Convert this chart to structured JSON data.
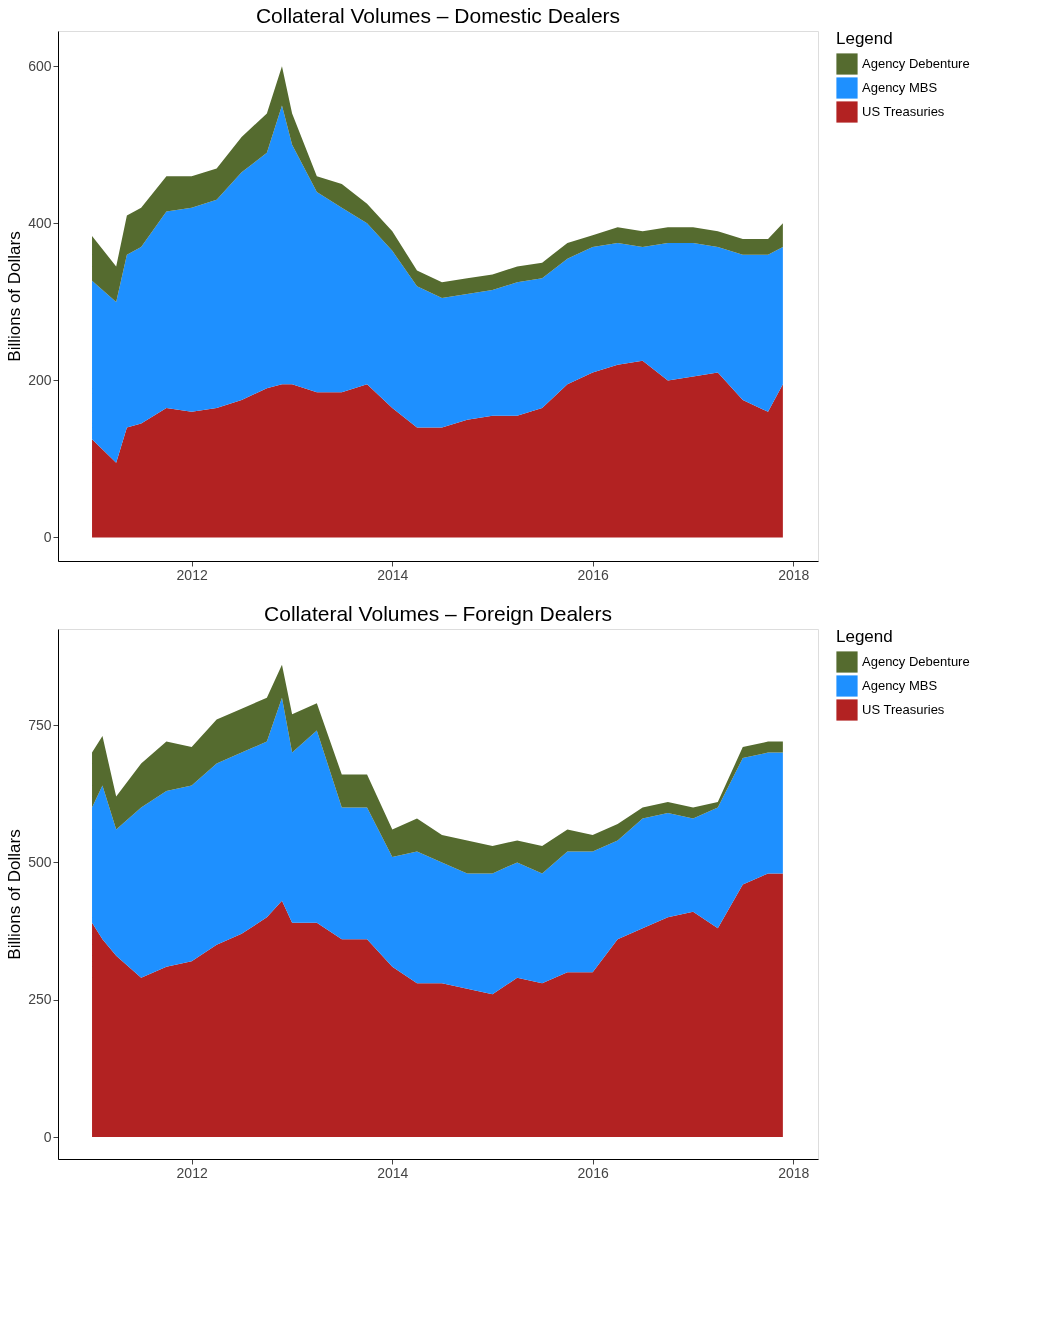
{
  "chart_data": [
    {
      "type": "area",
      "stacked": true,
      "title": "Collateral Volumes – Domestic Dealers",
      "ylabel": "Billions of Dollars",
      "legend_title": "Legend",
      "legend": "right",
      "grid": false,
      "x": [
        "2011-01-03",
        "2011-04-01",
        "2011-05-10",
        "2011-07-01",
        "2011-10-01",
        "2012-01-01",
        "2012-04-01",
        "2012-07-01",
        "2012-10-01",
        "2012-11-25",
        "2013-01-01",
        "2013-04-01",
        "2013-07-01",
        "2013-10-01",
        "2014-01-01",
        "2014-04-01",
        "2014-07-01",
        "2014-10-01",
        "2015-01-01",
        "2015-04-01",
        "2015-07-01",
        "2015-10-01",
        "2016-01-01",
        "2016-04-01",
        "2016-07-01",
        "2016-10-01",
        "2017-01-01",
        "2017-04-01",
        "2017-07-01",
        "2017-10-01",
        "2017-11-24"
      ],
      "xlim": [
        "2010-09-01",
        "2018-04-01"
      ],
      "xticks": [
        {
          "value": "2012-01-01",
          "label": "2012"
        },
        {
          "value": "2014-01-01",
          "label": "2014"
        },
        {
          "value": "2016-01-01",
          "label": "2016"
        },
        {
          "value": "2018-01-01",
          "label": "2018"
        }
      ],
      "ylim": [
        -30,
        645
      ],
      "yticks": [
        0,
        200,
        400,
        600
      ],
      "series": [
        {
          "name": "US Treasuries",
          "color": "#b22222",
          "values": [
            125,
            95,
            140,
            145,
            165,
            160,
            165,
            175,
            190,
            195,
            195,
            185,
            185,
            195,
            165,
            140,
            140,
            150,
            155,
            155,
            165,
            195,
            210,
            220,
            225,
            200,
            205,
            210,
            175,
            160,
            195
          ]
        },
        {
          "name": "Agency MBS",
          "color": "#1e90ff",
          "values": [
            202,
            205,
            220,
            225,
            250,
            260,
            265,
            290,
            300,
            355,
            305,
            255,
            235,
            205,
            200,
            180,
            165,
            160,
            160,
            170,
            165,
            160,
            160,
            155,
            145,
            175,
            170,
            160,
            185,
            200,
            175
          ]
        },
        {
          "name": "Agency Debenture",
          "color": "#556b2f",
          "values": [
            57,
            45,
            50,
            50,
            45,
            40,
            40,
            45,
            50,
            50,
            40,
            20,
            30,
            25,
            25,
            20,
            20,
            20,
            20,
            20,
            20,
            20,
            15,
            20,
            20,
            20,
            20,
            20,
            20,
            20,
            30
          ]
        }
      ]
    },
    {
      "type": "area",
      "stacked": true,
      "title": "Collateral Volumes – Foreign Dealers",
      "ylabel": "Billions of Dollars",
      "legend_title": "Legend",
      "legend": "right",
      "grid": false,
      "x": [
        "2011-01-03",
        "2011-02-10",
        "2011-04-01",
        "2011-07-01",
        "2011-10-01",
        "2012-01-01",
        "2012-04-01",
        "2012-07-01",
        "2012-10-01",
        "2012-11-25",
        "2013-01-01",
        "2013-04-01",
        "2013-07-01",
        "2013-10-01",
        "2014-01-01",
        "2014-04-01",
        "2014-07-01",
        "2014-10-01",
        "2015-01-01",
        "2015-04-01",
        "2015-07-01",
        "2015-10-01",
        "2016-01-01",
        "2016-04-01",
        "2016-07-01",
        "2016-10-01",
        "2017-01-01",
        "2017-04-01",
        "2017-07-01",
        "2017-10-01",
        "2017-11-24"
      ],
      "xlim": [
        "2010-09-01",
        "2018-04-01"
      ],
      "xticks": [
        {
          "value": "2012-01-01",
          "label": "2012"
        },
        {
          "value": "2014-01-01",
          "label": "2014"
        },
        {
          "value": "2016-01-01",
          "label": "2016"
        },
        {
          "value": "2018-01-01",
          "label": "2018"
        }
      ],
      "ylim": [
        -40,
        925
      ],
      "yticks": [
        0,
        250,
        500,
        750
      ],
      "series": [
        {
          "name": "US Treasuries",
          "color": "#b22222",
          "values": [
            390,
            360,
            330,
            290,
            310,
            320,
            350,
            370,
            400,
            430,
            390,
            390,
            360,
            360,
            310,
            280,
            280,
            270,
            260,
            290,
            280,
            300,
            300,
            360,
            380,
            400,
            410,
            380,
            460,
            480,
            480
          ]
        },
        {
          "name": "Agency MBS",
          "color": "#1e90ff",
          "values": [
            210,
            280,
            230,
            310,
            320,
            320,
            330,
            330,
            320,
            370,
            310,
            350,
            240,
            240,
            200,
            240,
            220,
            210,
            220,
            210,
            200,
            220,
            220,
            180,
            200,
            190,
            170,
            220,
            230,
            220,
            220
          ]
        },
        {
          "name": "Agency Debenture",
          "color": "#556b2f",
          "values": [
            100,
            90,
            60,
            80,
            90,
            70,
            80,
            80,
            80,
            60,
            70,
            50,
            60,
            60,
            50,
            60,
            50,
            60,
            50,
            40,
            50,
            40,
            30,
            30,
            20,
            20,
            20,
            10,
            20,
            20,
            20
          ]
        }
      ]
    }
  ]
}
